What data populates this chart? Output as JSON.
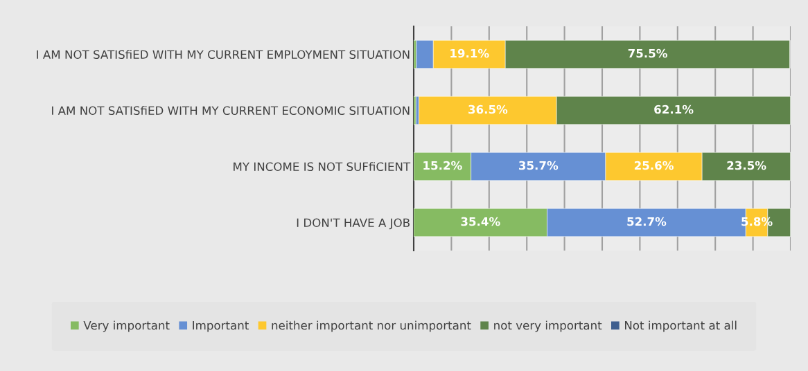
{
  "chart_data": {
    "type": "bar",
    "orientation": "horizontal",
    "stacked": true,
    "categories": [
      "I AM NOT SATISﬁED WITH MY CURRENT EMPLOYMENT SITUATION",
      "I AM NOT SATISﬁED WITH MY CURRENT ECONOMIC SITUATION",
      "MY INCOME IS NOT SUFﬁCIENT",
      "I DON'T HAVE A JOB"
    ],
    "series": [
      {
        "name": "Very important",
        "color": "#86bb62",
        "values": [
          0.7,
          0.6,
          15.2,
          35.4
        ],
        "value_labels": [
          null,
          null,
          "15.2%",
          "35.4%"
        ]
      },
      {
        "name": "Important",
        "color": "#6690d4",
        "values": [
          4.5,
          0.8,
          35.7,
          52.7
        ],
        "value_labels": [
          null,
          null,
          "35.7%",
          "52.7%"
        ]
      },
      {
        "name": "neither important nor unimportant",
        "color": "#fdc82f",
        "values": [
          19.1,
          36.5,
          25.6,
          5.8
        ],
        "value_labels": [
          "19.1%",
          "36.5%",
          "25.6%",
          "5.8%"
        ]
      },
      {
        "name": "not very important",
        "color": "#5f844b",
        "values": [
          75.5,
          62.1,
          23.5,
          6.1
        ],
        "value_labels": [
          "75.5%",
          "62.1%",
          "23.5%",
          null
        ]
      },
      {
        "name": "Not important at all",
        "color": "#3f5f8f",
        "values": [
          null,
          null,
          null,
          null
        ],
        "value_labels": [
          null,
          null,
          null,
          null
        ]
      }
    ],
    "xlim": [
      0,
      100
    ],
    "xticks": [
      {
        "value": 0,
        "label": null
      },
      {
        "value": 10,
        "label": null
      },
      {
        "value": 20,
        "label": null
      },
      {
        "value": 30,
        "label": null
      },
      {
        "value": 40,
        "label": null
      },
      {
        "value": 50,
        "label": null
      },
      {
        "value": 60,
        "label": null
      },
      {
        "value": 70,
        "label": null
      },
      {
        "value": 80,
        "label": null
      },
      {
        "value": 90,
        "label": null
      },
      {
        "value": 100,
        "label": null
      }
    ],
    "grid": "x",
    "legend": "bottom",
    "tick_labels": "y"
  }
}
